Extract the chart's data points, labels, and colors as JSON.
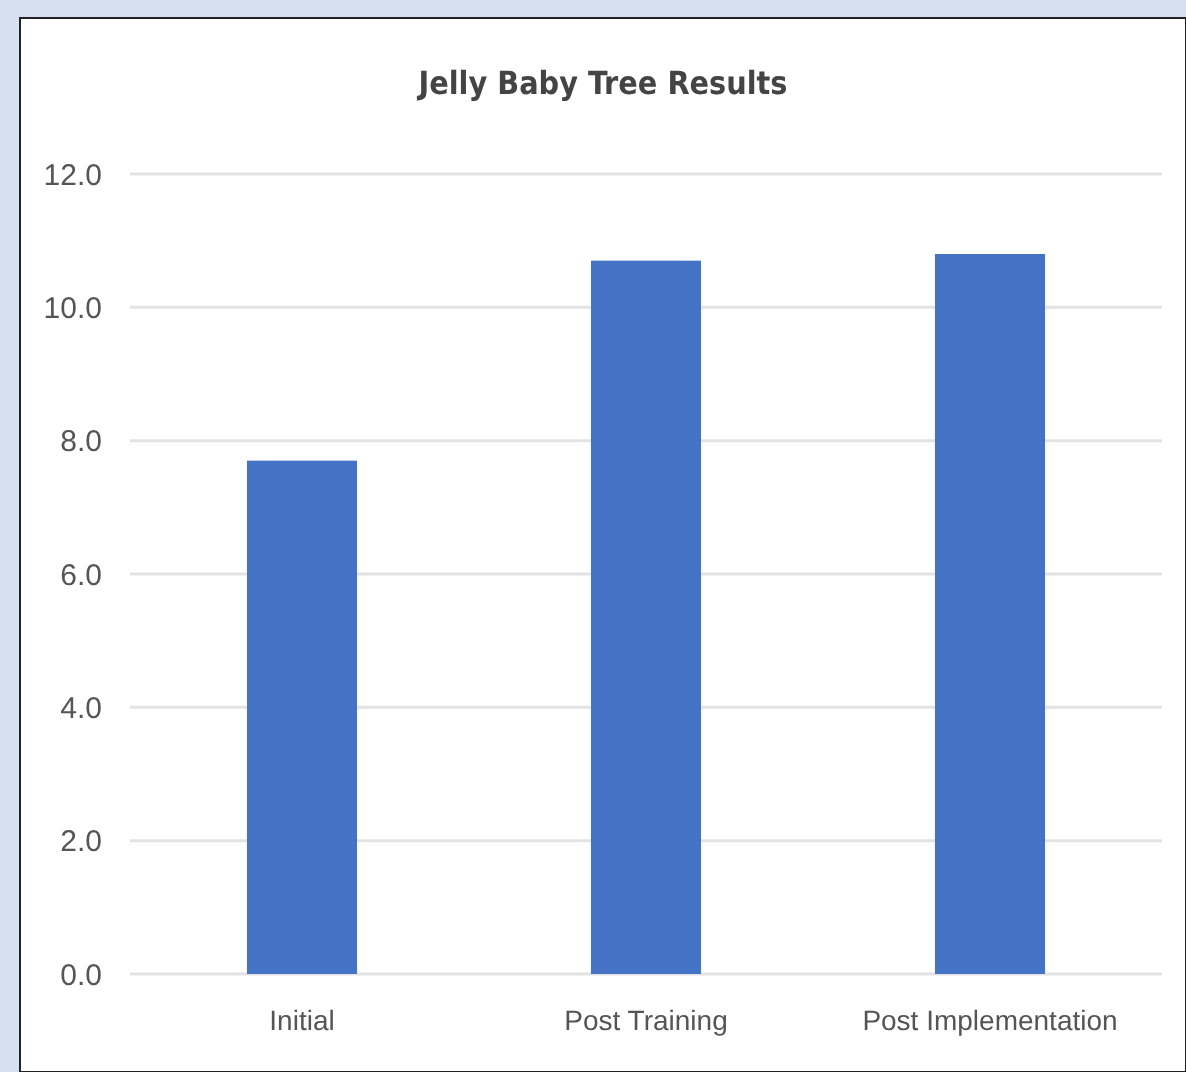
{
  "chart_data": {
    "type": "bar",
    "title": "Jelly Baby Tree Results",
    "categories": [
      "Initial",
      "Post Training",
      "Post Implementation"
    ],
    "values": [
      7.7,
      10.7,
      10.8
    ],
    "color": "#4472c4",
    "ylim": [
      0,
      12
    ],
    "yticks": [
      {
        "value": 0,
        "label": "0.0"
      },
      {
        "value": 2,
        "label": "2.0"
      },
      {
        "value": 4,
        "label": "4.0"
      },
      {
        "value": 6,
        "label": "6.0"
      },
      {
        "value": 8,
        "label": "8.0"
      },
      {
        "value": 10,
        "label": "10.0"
      },
      {
        "value": 12,
        "label": "12.0"
      }
    ],
    "grid": "y"
  }
}
